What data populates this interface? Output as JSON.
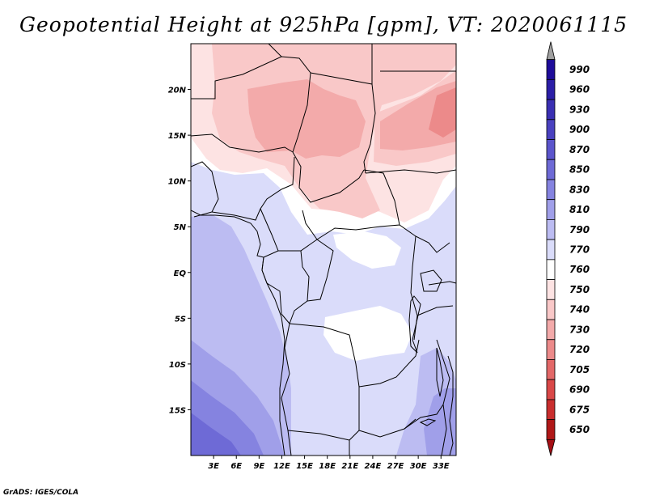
{
  "title": "Geopotential Height at 925hPa [gpm], VT: 2020061115",
  "footer": "GrADS: IGES/COLA",
  "map": {
    "lon_range": [
      0,
      35
    ],
    "lat_range": [
      -20,
      25
    ],
    "lat_ticks": [
      {
        "value": 20,
        "label": "20N"
      },
      {
        "value": 15,
        "label": "15N"
      },
      {
        "value": 10,
        "label": "10N"
      },
      {
        "value": 5,
        "label": "5N"
      },
      {
        "value": 0,
        "label": "EQ"
      },
      {
        "value": -5,
        "label": "5S"
      },
      {
        "value": -10,
        "label": "10S"
      },
      {
        "value": -15,
        "label": "15S"
      }
    ],
    "lon_ticks": [
      {
        "value": 3,
        "label": "3E"
      },
      {
        "value": 6,
        "label": "6E"
      },
      {
        "value": 9,
        "label": "9E"
      },
      {
        "value": 12,
        "label": "12E"
      },
      {
        "value": 15,
        "label": "15E"
      },
      {
        "value": 18,
        "label": "18E"
      },
      {
        "value": 21,
        "label": "21E"
      },
      {
        "value": 24,
        "label": "24E"
      },
      {
        "value": 27,
        "label": "27E"
      },
      {
        "value": 30,
        "label": "30E"
      },
      {
        "value": 33,
        "label": "33E"
      }
    ]
  },
  "legend": {
    "top_arrow_color": "#a0a0a0",
    "bottom_arrow_color": "#a50f15",
    "levels": [
      {
        "label": "990",
        "color": "#1e0c9a"
      },
      {
        "label": "960",
        "color": "#2b1ea7"
      },
      {
        "label": "930",
        "color": "#3a2fb3"
      },
      {
        "label": "900",
        "color": "#4a41c0"
      },
      {
        "label": "870",
        "color": "#5b55cc"
      },
      {
        "label": "850",
        "color": "#6e6ad6"
      },
      {
        "label": "830",
        "color": "#8583e0"
      },
      {
        "label": "810",
        "color": "#a09fe9"
      },
      {
        "label": "790",
        "color": "#bcbcf2"
      },
      {
        "label": "770",
        "color": "#dadcfa"
      },
      {
        "label": "760",
        "color": "#ffffff"
      },
      {
        "label": "750",
        "color": "#fde3e3"
      },
      {
        "label": "740",
        "color": "#f9c8c8"
      },
      {
        "label": "730",
        "color": "#f3aaaa"
      },
      {
        "label": "720",
        "color": "#ec8a8a"
      },
      {
        "label": "705",
        "color": "#e36868"
      },
      {
        "label": "690",
        "color": "#d94848"
      },
      {
        "label": "675",
        "color": "#c92e2e"
      },
      {
        "label": "650",
        "color": "#b01818"
      }
    ]
  }
}
